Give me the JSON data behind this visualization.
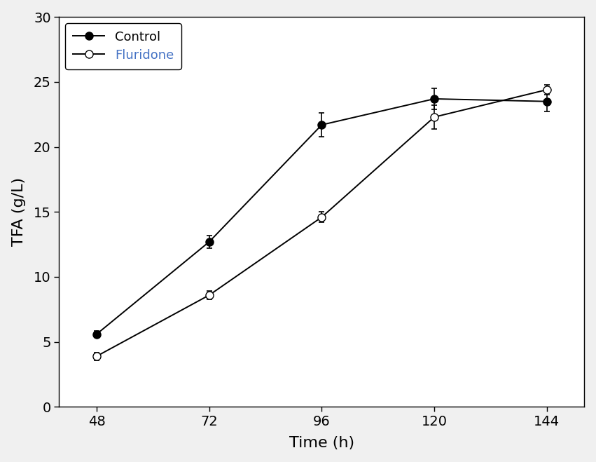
{
  "time": [
    48,
    72,
    96,
    120,
    144
  ],
  "control_y": [
    5.6,
    12.7,
    21.7,
    23.7,
    23.5
  ],
  "control_yerr": [
    0.25,
    0.5,
    0.9,
    0.8,
    0.75
  ],
  "fluridone_y": [
    3.9,
    8.6,
    14.6,
    22.3,
    24.4
  ],
  "fluridone_yerr": [
    0.3,
    0.3,
    0.4,
    0.9,
    0.4
  ],
  "xlabel": "Time (h)",
  "ylabel": "TFA (g/L)",
  "ylim": [
    0,
    30
  ],
  "xticks": [
    48,
    72,
    96,
    120,
    144
  ],
  "yticks": [
    0,
    5,
    10,
    15,
    20,
    25,
    30
  ],
  "line_color": "#000000",
  "fluridone_label_color": "#4472C4",
  "control_label": "Control",
  "fluridone_label": "Fluridone",
  "marker_size": 8,
  "line_width": 1.4,
  "capsize": 3,
  "elinewidth": 1.2,
  "capthick": 1.2,
  "tick_labelsize": 14,
  "axis_labelsize": 16,
  "legend_fontsize": 13,
  "figsize": [
    8.51,
    6.59
  ],
  "dpi": 100,
  "fig_facecolor": "#f0f0f0",
  "ax_facecolor": "#ffffff"
}
